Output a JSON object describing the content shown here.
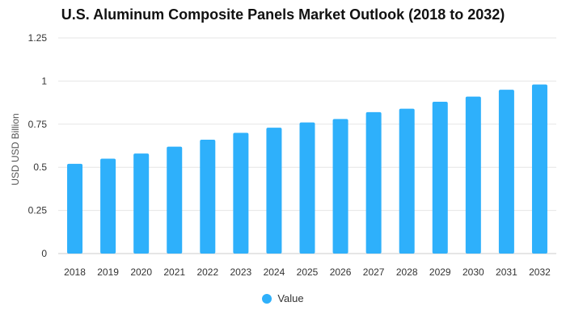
{
  "chart_data": {
    "type": "bar",
    "title": "U.S. Aluminum Composite Panels Market Outlook (2018 to 2032)",
    "xlabel": "",
    "ylabel": "USD USD Billion",
    "categories": [
      "2018",
      "2019",
      "2020",
      "2021",
      "2022",
      "2023",
      "2024",
      "2025",
      "2026",
      "2027",
      "2028",
      "2029",
      "2030",
      "2031",
      "2032"
    ],
    "series": [
      {
        "name": "Value",
        "values": [
          0.52,
          0.55,
          0.58,
          0.62,
          0.66,
          0.7,
          0.73,
          0.76,
          0.78,
          0.82,
          0.84,
          0.88,
          0.91,
          0.95,
          0.98
        ]
      }
    ],
    "ylim": [
      0,
      1.25
    ],
    "yticks": [
      0,
      0.25,
      0.5,
      0.75,
      1,
      1.25
    ],
    "ytick_labels": [
      "0",
      "0.25",
      "0.5",
      "0.75",
      "1",
      "1.25"
    ],
    "grid": true,
    "legend_position": "bottom",
    "bar_color": "#2eb0fb",
    "grid_color": "#e6e6e6"
  }
}
